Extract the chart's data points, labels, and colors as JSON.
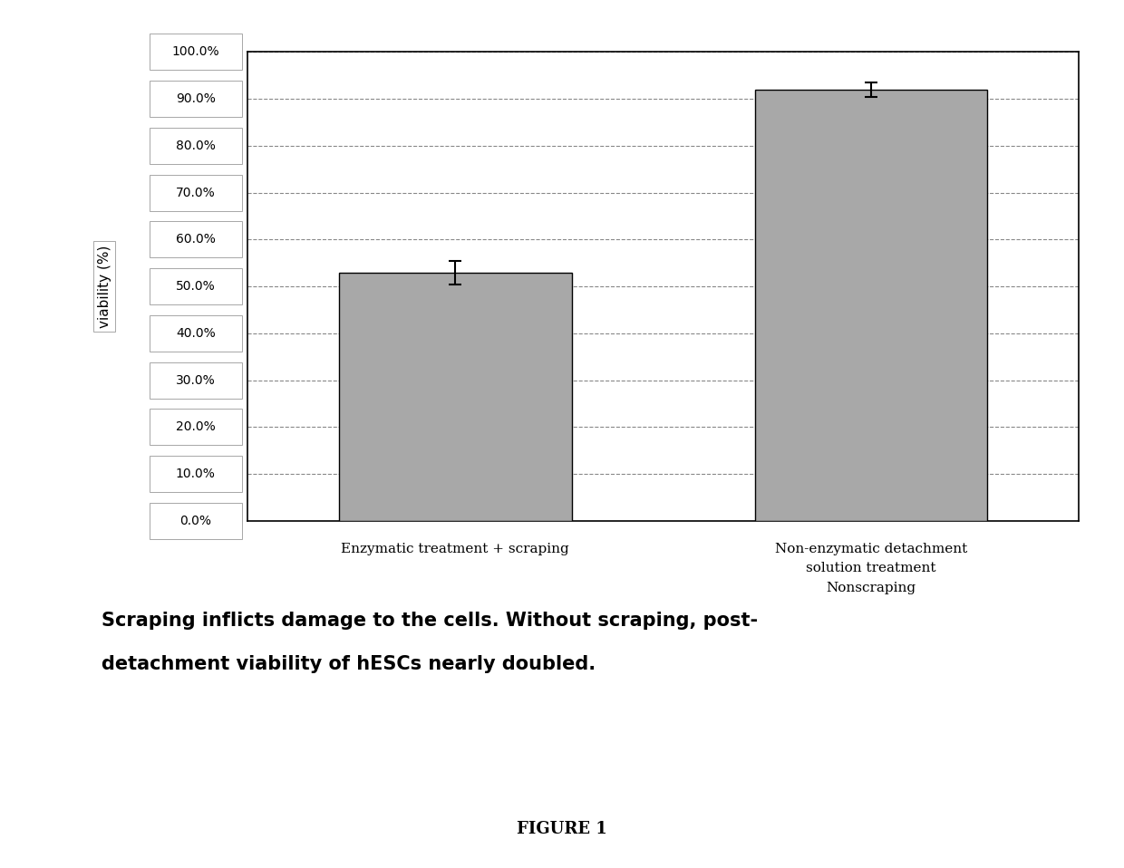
{
  "values": [
    53.0,
    92.0
  ],
  "errors": [
    2.5,
    1.5
  ],
  "bar_color": "#a8a8a8",
  "bar_edge_color": "#000000",
  "ylabel": "viability (%)",
  "ylim": [
    0,
    100
  ],
  "yticks": [
    0,
    10,
    20,
    30,
    40,
    50,
    60,
    70,
    80,
    90,
    100
  ],
  "ytick_labels": [
    "0.0%",
    "10.0%",
    "20.0%",
    "30.0%",
    "40.0%",
    "50.0%",
    "60.0%",
    "70.0%",
    "80.0%",
    "90.0%",
    "100.0%"
  ],
  "grid_style": "--",
  "grid_color": "#888888",
  "background_color": "#ffffff",
  "bar_width": 0.28,
  "x_label_1": "Enzymatic treatment + scraping",
  "x_label_2": "Non-enzymatic detachment\nsolution treatment\nNonscraping",
  "caption_line1": "Scraping inflicts damage to the cells. Without scraping, post-",
  "caption_line2": "detachment viability of hESCs nearly doubled.",
  "figure_label": "FIGURE 1",
  "tick_label_fontsize": 10,
  "ylabel_fontsize": 11,
  "xlabel_fontsize": 11,
  "caption_fontsize": 15,
  "figure_label_fontsize": 13
}
